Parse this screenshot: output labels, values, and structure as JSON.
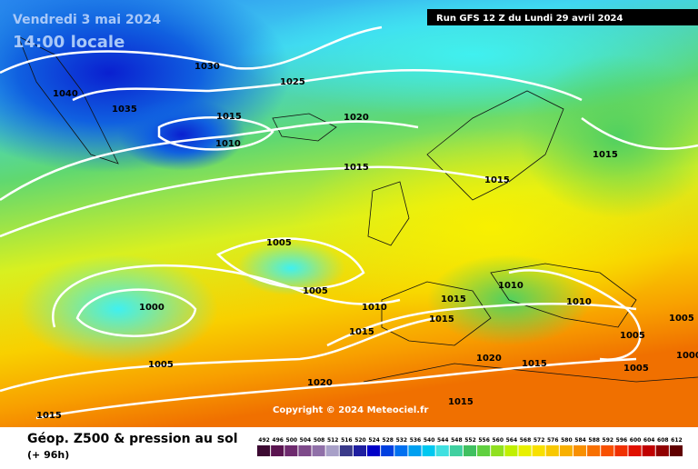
{
  "header": {
    "date": "Vendredi 3 mai 2024",
    "time": "14:00 locale",
    "run": "Run GFS 12 Z du Lundi 29 avril 2024"
  },
  "copyright": "Copyright © 2024 Meteociel.fr",
  "footer": {
    "title": "Géop. Z500 & pression au sol",
    "lead": "(+ 96h)"
  },
  "isobar_labels": [
    1030,
    1025,
    1040,
    1035,
    1015,
    1020,
    1010,
    1015,
    1015,
    1015,
    1005,
    1005,
    1010,
    1015,
    1010,
    1000,
    1010,
    1015,
    1005,
    1015,
    1005,
    1005,
    1020,
    1015,
    1005,
    1000,
    1020,
    1015,
    1015
  ],
  "scale": {
    "values": [
      492,
      496,
      500,
      504,
      508,
      512,
      516,
      520,
      524,
      528,
      532,
      536,
      540,
      544,
      548,
      552,
      556,
      560,
      564,
      568,
      572,
      576,
      580,
      584,
      588,
      592,
      596,
      600,
      604,
      608,
      612
    ],
    "colors": [
      "#3c0a32",
      "#5a1450",
      "#6e2a6e",
      "#7e4a8a",
      "#9070a8",
      "#a8a0c8",
      "#3a3a8a",
      "#1e1ea0",
      "#0000c8",
      "#0040e0",
      "#0070f0",
      "#00a0f0",
      "#00c8f0",
      "#40e0e0",
      "#40d0a0",
      "#40c060",
      "#60d040",
      "#90e020",
      "#c0f000",
      "#e8f000",
      "#f8e000",
      "#f8c800",
      "#f8b000",
      "#f89000",
      "#f87000",
      "#f85000",
      "#f03000",
      "#e01000",
      "#c00000",
      "#900000",
      "#600000"
    ]
  }
}
